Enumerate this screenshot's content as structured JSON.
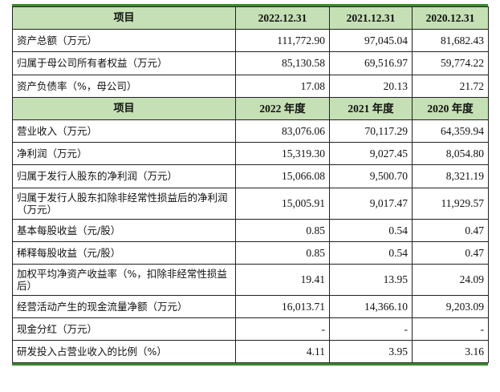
{
  "header1": {
    "label": "项目",
    "cols": [
      "2022.12.31",
      "2021.12.31",
      "2020.12.31"
    ]
  },
  "rows1": [
    {
      "label": "资产总额（万元）",
      "values": [
        "111,772.90",
        "97,045.04",
        "81,682.43"
      ]
    },
    {
      "label": "归属于母公司所有者权益（万元）",
      "values": [
        "85,130.58",
        "69,516.97",
        "59,774.22"
      ]
    },
    {
      "label": "资产负债率（%，母公司）",
      "values": [
        "17.08",
        "20.13",
        "21.72"
      ]
    }
  ],
  "header2": {
    "label": "项目",
    "cols": [
      "2022 年度",
      "2021 年度",
      "2020 年度"
    ]
  },
  "rows2": [
    {
      "label": "营业收入（万元）",
      "values": [
        "83,076.06",
        "70,117.29",
        "64,359.94"
      ]
    },
    {
      "label": "净利润（万元）",
      "values": [
        "15,319.30",
        "9,027.45",
        "8,054.80"
      ]
    },
    {
      "label": "归属于发行人股东的净利润（万元）",
      "values": [
        "15,066.08",
        "9,500.70",
        "8,321.19"
      ]
    },
    {
      "label": "归属于发行人股东扣除非经常性损益后的净利润（万元）",
      "values": [
        "15,005.91",
        "9,017.47",
        "11,929.57"
      ]
    },
    {
      "label": "基本每股收益（元/股）",
      "values": [
        "0.85",
        "0.54",
        "0.47"
      ]
    },
    {
      "label": "稀释每股收益（元/股）",
      "values": [
        "0.85",
        "0.54",
        "0.47"
      ]
    },
    {
      "label": "加权平均净资产收益率（%，扣除非经常性损益后）",
      "values": [
        "19.41",
        "13.95",
        "24.09"
      ]
    },
    {
      "label": "经营活动产生的现金流量净额（万元）",
      "values": [
        "16,013.71",
        "14,366.10",
        "9,203.09"
      ]
    },
    {
      "label": "现金分红（万元）",
      "values": [
        "-",
        "-",
        "-"
      ]
    },
    {
      "label": "研发投入占营业收入的比例（%）",
      "values": [
        "4.11",
        "3.95",
        "3.16"
      ]
    }
  ],
  "colors": {
    "header_bg": "#c5e0b4",
    "rule": "#3a8a2e"
  }
}
